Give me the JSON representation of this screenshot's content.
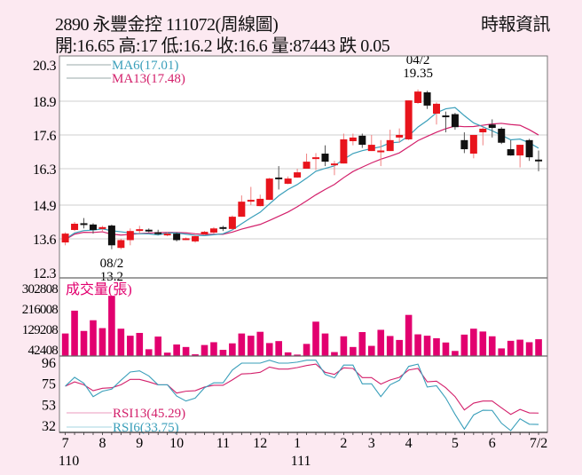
{
  "header": {
    "title": "2890  永豐金控 111072(周線圖)",
    "quote": "開:16.65 高:17 低:16.2 收:16.6 量:87443 跌 0.05",
    "source": "時報資訊"
  },
  "colors": {
    "up": "#e8141c",
    "down": "#111111",
    "volume": "#e2006f",
    "ma6": "#3a9fba",
    "ma13": "#d3206b",
    "rsi13": "#d3206b",
    "rsi6": "#3a9fba",
    "background": "#fce9f1",
    "plot": "#ffffff"
  },
  "chart_data": [
    {
      "type": "candlestick",
      "panel": "price",
      "y_ticks": [
        "20.3",
        "18.9",
        "17.6",
        "16.3",
        "14.9",
        "13.6",
        "12.3"
      ],
      "ylim": [
        12.3,
        20.3
      ],
      "grid": true,
      "legend": [
        {
          "label": "MA6(17.01)",
          "color_key": "ma6"
        },
        {
          "label": "MA13(17.48)",
          "color_key": "ma13"
        }
      ],
      "annotations": [
        {
          "week": 5,
          "date": "08/2",
          "value": "13.2",
          "position": "below"
        },
        {
          "week": 38,
          "date": "04/2",
          "value": "19.35",
          "position": "above"
        }
      ],
      "ohlc": [
        [
          13.46,
          13.85,
          13.35,
          13.8
        ],
        [
          13.94,
          14.25,
          13.9,
          14.18
        ],
        [
          14.2,
          14.4,
          14.0,
          14.15
        ],
        [
          14.15,
          14.2,
          13.8,
          13.94
        ],
        [
          13.98,
          14.1,
          13.9,
          14.05
        ],
        [
          14.11,
          14.15,
          13.2,
          13.35
        ],
        [
          13.25,
          13.6,
          13.2,
          13.55
        ],
        [
          13.55,
          14.0,
          13.35,
          13.9
        ],
        [
          13.92,
          14.1,
          13.8,
          13.97
        ],
        [
          13.95,
          14.0,
          13.85,
          13.93
        ],
        [
          13.85,
          13.95,
          13.75,
          13.8
        ],
        [
          13.77,
          13.85,
          13.7,
          13.8
        ],
        [
          13.8,
          13.85,
          13.5,
          13.55
        ],
        [
          13.58,
          13.65,
          13.55,
          13.62
        ],
        [
          13.5,
          13.75,
          13.45,
          13.7
        ],
        [
          13.77,
          13.9,
          13.75,
          13.87
        ],
        [
          13.84,
          14.05,
          13.8,
          14.0
        ],
        [
          14.05,
          14.1,
          13.9,
          14.02
        ],
        [
          13.98,
          14.5,
          13.95,
          14.45
        ],
        [
          14.45,
          15.27,
          14.45,
          15.03
        ],
        [
          15.05,
          15.6,
          14.9,
          15.1
        ],
        [
          14.86,
          15.3,
          14.85,
          15.14
        ],
        [
          15.1,
          15.95,
          15.1,
          15.92
        ],
        [
          15.96,
          16.4,
          15.5,
          15.9
        ],
        [
          15.72,
          16.0,
          15.7,
          15.92
        ],
        [
          15.96,
          16.3,
          15.95,
          16.16
        ],
        [
          16.3,
          16.88,
          16.3,
          16.57
        ],
        [
          16.68,
          16.9,
          16.25,
          16.74
        ],
        [
          16.88,
          17.2,
          16.4,
          16.57
        ],
        [
          16.45,
          16.6,
          16.05,
          16.5
        ],
        [
          16.5,
          17.65,
          16.5,
          17.43
        ],
        [
          17.36,
          17.65,
          17.2,
          17.5
        ],
        [
          17.57,
          17.65,
          17.1,
          17.22
        ],
        [
          16.98,
          17.6,
          16.98,
          17.22
        ],
        [
          16.95,
          17.4,
          16.4,
          17.0
        ],
        [
          16.98,
          17.8,
          16.98,
          17.4
        ],
        [
          17.5,
          17.85,
          17.3,
          17.6
        ],
        [
          17.43,
          18.93,
          17.4,
          18.93
        ],
        [
          18.83,
          19.35,
          18.8,
          19.27
        ],
        [
          19.24,
          19.3,
          18.6,
          18.73
        ],
        [
          18.42,
          18.85,
          18.0,
          18.8
        ],
        [
          18.35,
          18.5,
          17.7,
          18.3
        ],
        [
          18.4,
          18.45,
          17.8,
          17.9
        ],
        [
          17.4,
          17.7,
          16.9,
          17.05
        ],
        [
          16.88,
          17.6,
          16.7,
          17.6
        ],
        [
          17.7,
          17.9,
          17.2,
          17.84
        ],
        [
          18.0,
          18.2,
          17.5,
          17.87
        ],
        [
          17.84,
          17.9,
          17.25,
          17.3
        ],
        [
          17.05,
          17.4,
          16.8,
          16.81
        ],
        [
          16.81,
          17.22,
          16.35,
          17.22
        ],
        [
          17.4,
          17.45,
          16.6,
          16.74
        ],
        [
          16.65,
          17.0,
          16.2,
          16.6
        ]
      ]
    },
    {
      "type": "bar",
      "panel": "volume",
      "title": "成交量(張)",
      "y_ticks": [
        "302808",
        "216008",
        "129208",
        "42408"
      ],
      "ylim": [
        16000,
        302808
      ],
      "values": [
        111800,
        208800,
        122600,
        168100,
        134600,
        272000,
        132200,
        102300,
        114200,
        44800,
        98700,
        30400,
        65100,
        54400,
        23300,
        62800,
        74700,
        42400,
        69900,
        111800,
        102300,
        119000,
        71100,
        79500,
        31600,
        22100,
        67500,
        162100,
        111800,
        32800,
        99900,
        54400,
        117800,
        59200,
        127400,
        101100,
        84300,
        190800,
        108200,
        102300,
        91500,
        73500,
        37600,
        107000,
        132200,
        120200,
        99900,
        48400,
        80700,
        85500,
        74700,
        87443
      ]
    },
    {
      "type": "line",
      "panel": "rsi",
      "y_ticks": [
        "96",
        "75",
        "53",
        "32"
      ],
      "ylim": [
        32,
        96
      ],
      "series": [
        {
          "name": "RSI13(45.29)",
          "color_key": "rsi13",
          "values": [
            72.6,
            77,
            74,
            68,
            70.5,
            71,
            74,
            79.5,
            79.5,
            77,
            74,
            74,
            65.6,
            67.5,
            68,
            71.7,
            73.5,
            73.5,
            79,
            85,
            85.5,
            86.7,
            92,
            90,
            90,
            91.5,
            93.6,
            95,
            86.7,
            84.6,
            91.2,
            90.6,
            81.3,
            81.3,
            74.7,
            78.9,
            81.6,
            89,
            90.6,
            77,
            77.7,
            71,
            62,
            48.5,
            55.4,
            57.5,
            57.5,
            50.6,
            44,
            49,
            45.5,
            45.29
          ]
        },
        {
          "name": "RSI6(33.75)",
          "color_key": "rsi6",
          "values": [
            72.6,
            81.6,
            75.6,
            62,
            67.5,
            69.6,
            78.6,
            87,
            88.2,
            83,
            74,
            74,
            62.6,
            57.5,
            60.5,
            71,
            76,
            76,
            89,
            96,
            96,
            96,
            99,
            96,
            96,
            97,
            99,
            99,
            84.6,
            81,
            94,
            94,
            75,
            75,
            62,
            74,
            78.6,
            92.7,
            95,
            71.7,
            73,
            60.5,
            44,
            29,
            43.4,
            48.2,
            48,
            35,
            27,
            39.5,
            34,
            33.75
          ]
        }
      ]
    }
  ],
  "x_axis": {
    "labels": [
      {
        "label": "7",
        "week": 0,
        "year": "110"
      },
      {
        "label": "8",
        "week": 4
      },
      {
        "label": "9",
        "week": 8
      },
      {
        "label": "10",
        "week": 12
      },
      {
        "label": "11",
        "week": 17
      },
      {
        "label": "12",
        "week": 21
      },
      {
        "label": "1",
        "week": 25,
        "year": "111"
      },
      {
        "label": "2",
        "week": 30
      },
      {
        "label": "3",
        "week": 33
      },
      {
        "label": "4",
        "week": 37
      },
      {
        "label": "5",
        "week": 42
      },
      {
        "label": "6",
        "week": 46
      },
      {
        "label": "7/2",
        "week": 51
      }
    ]
  }
}
